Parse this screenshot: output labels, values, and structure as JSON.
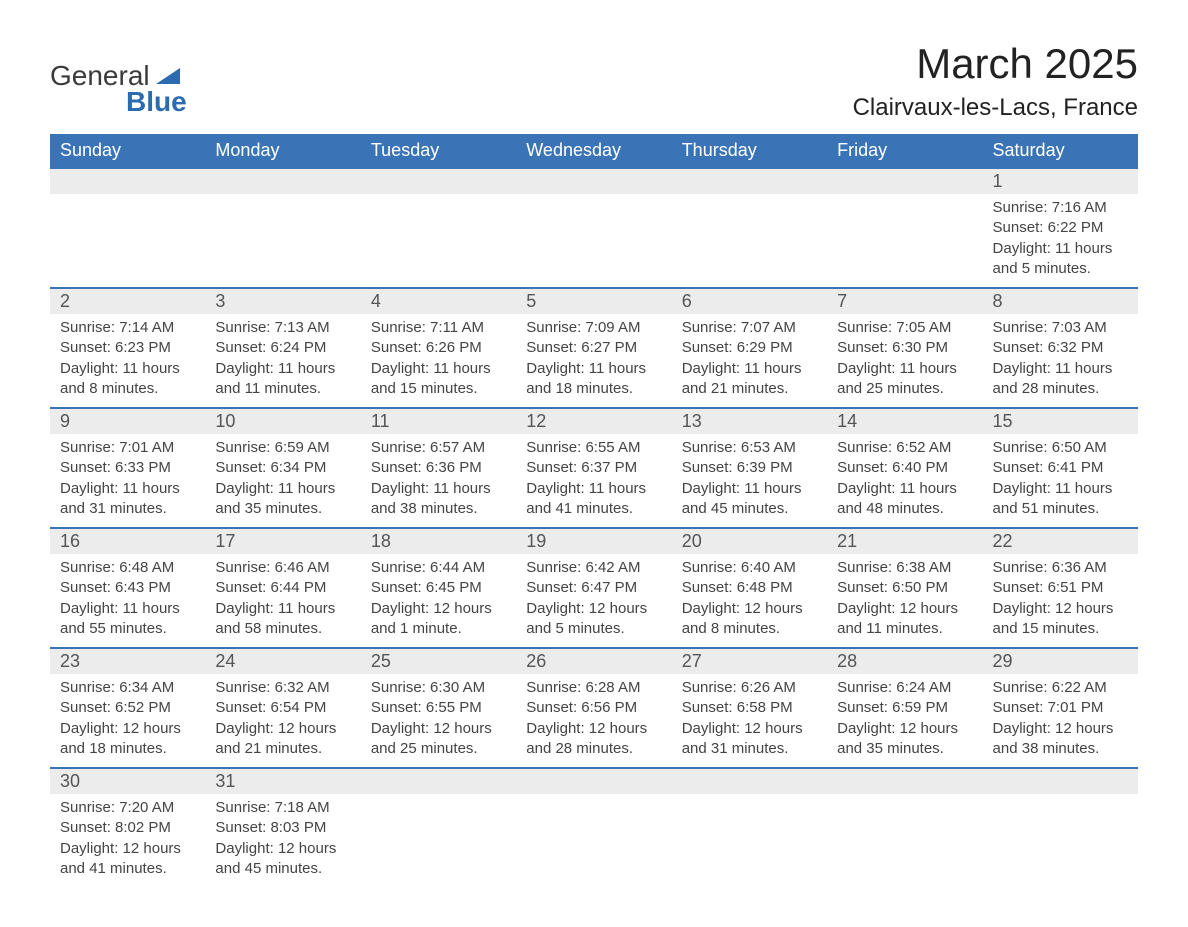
{
  "logo": {
    "main": "General",
    "sub": "Blue"
  },
  "title": {
    "month": "March 2025",
    "location": "Clairvaux-les-Lacs, France"
  },
  "colors": {
    "header_bg": "#3b74b6",
    "header_fg": "#ffffff",
    "row_border": "#3b74b6",
    "daynum_bg": "#ececec",
    "text": "#444444",
    "logo_blue": "#2b6cb0"
  },
  "table": {
    "columns": [
      "Sunday",
      "Monday",
      "Tuesday",
      "Wednesday",
      "Thursday",
      "Friday",
      "Saturday"
    ],
    "weeks": [
      [
        {
          "day": "",
          "sunrise": "",
          "sunset": "",
          "daylight": ""
        },
        {
          "day": "",
          "sunrise": "",
          "sunset": "",
          "daylight": ""
        },
        {
          "day": "",
          "sunrise": "",
          "sunset": "",
          "daylight": ""
        },
        {
          "day": "",
          "sunrise": "",
          "sunset": "",
          "daylight": ""
        },
        {
          "day": "",
          "sunrise": "",
          "sunset": "",
          "daylight": ""
        },
        {
          "day": "",
          "sunrise": "",
          "sunset": "",
          "daylight": ""
        },
        {
          "day": "1",
          "sunrise": "Sunrise: 7:16 AM",
          "sunset": "Sunset: 6:22 PM",
          "daylight": "Daylight: 11 hours and 5 minutes."
        }
      ],
      [
        {
          "day": "2",
          "sunrise": "Sunrise: 7:14 AM",
          "sunset": "Sunset: 6:23 PM",
          "daylight": "Daylight: 11 hours and 8 minutes."
        },
        {
          "day": "3",
          "sunrise": "Sunrise: 7:13 AM",
          "sunset": "Sunset: 6:24 PM",
          "daylight": "Daylight: 11 hours and 11 minutes."
        },
        {
          "day": "4",
          "sunrise": "Sunrise: 7:11 AM",
          "sunset": "Sunset: 6:26 PM",
          "daylight": "Daylight: 11 hours and 15 minutes."
        },
        {
          "day": "5",
          "sunrise": "Sunrise: 7:09 AM",
          "sunset": "Sunset: 6:27 PM",
          "daylight": "Daylight: 11 hours and 18 minutes."
        },
        {
          "day": "6",
          "sunrise": "Sunrise: 7:07 AM",
          "sunset": "Sunset: 6:29 PM",
          "daylight": "Daylight: 11 hours and 21 minutes."
        },
        {
          "day": "7",
          "sunrise": "Sunrise: 7:05 AM",
          "sunset": "Sunset: 6:30 PM",
          "daylight": "Daylight: 11 hours and 25 minutes."
        },
        {
          "day": "8",
          "sunrise": "Sunrise: 7:03 AM",
          "sunset": "Sunset: 6:32 PM",
          "daylight": "Daylight: 11 hours and 28 minutes."
        }
      ],
      [
        {
          "day": "9",
          "sunrise": "Sunrise: 7:01 AM",
          "sunset": "Sunset: 6:33 PM",
          "daylight": "Daylight: 11 hours and 31 minutes."
        },
        {
          "day": "10",
          "sunrise": "Sunrise: 6:59 AM",
          "sunset": "Sunset: 6:34 PM",
          "daylight": "Daylight: 11 hours and 35 minutes."
        },
        {
          "day": "11",
          "sunrise": "Sunrise: 6:57 AM",
          "sunset": "Sunset: 6:36 PM",
          "daylight": "Daylight: 11 hours and 38 minutes."
        },
        {
          "day": "12",
          "sunrise": "Sunrise: 6:55 AM",
          "sunset": "Sunset: 6:37 PM",
          "daylight": "Daylight: 11 hours and 41 minutes."
        },
        {
          "day": "13",
          "sunrise": "Sunrise: 6:53 AM",
          "sunset": "Sunset: 6:39 PM",
          "daylight": "Daylight: 11 hours and 45 minutes."
        },
        {
          "day": "14",
          "sunrise": "Sunrise: 6:52 AM",
          "sunset": "Sunset: 6:40 PM",
          "daylight": "Daylight: 11 hours and 48 minutes."
        },
        {
          "day": "15",
          "sunrise": "Sunrise: 6:50 AM",
          "sunset": "Sunset: 6:41 PM",
          "daylight": "Daylight: 11 hours and 51 minutes."
        }
      ],
      [
        {
          "day": "16",
          "sunrise": "Sunrise: 6:48 AM",
          "sunset": "Sunset: 6:43 PM",
          "daylight": "Daylight: 11 hours and 55 minutes."
        },
        {
          "day": "17",
          "sunrise": "Sunrise: 6:46 AM",
          "sunset": "Sunset: 6:44 PM",
          "daylight": "Daylight: 11 hours and 58 minutes."
        },
        {
          "day": "18",
          "sunrise": "Sunrise: 6:44 AM",
          "sunset": "Sunset: 6:45 PM",
          "daylight": "Daylight: 12 hours and 1 minute."
        },
        {
          "day": "19",
          "sunrise": "Sunrise: 6:42 AM",
          "sunset": "Sunset: 6:47 PM",
          "daylight": "Daylight: 12 hours and 5 minutes."
        },
        {
          "day": "20",
          "sunrise": "Sunrise: 6:40 AM",
          "sunset": "Sunset: 6:48 PM",
          "daylight": "Daylight: 12 hours and 8 minutes."
        },
        {
          "day": "21",
          "sunrise": "Sunrise: 6:38 AM",
          "sunset": "Sunset: 6:50 PM",
          "daylight": "Daylight: 12 hours and 11 minutes."
        },
        {
          "day": "22",
          "sunrise": "Sunrise: 6:36 AM",
          "sunset": "Sunset: 6:51 PM",
          "daylight": "Daylight: 12 hours and 15 minutes."
        }
      ],
      [
        {
          "day": "23",
          "sunrise": "Sunrise: 6:34 AM",
          "sunset": "Sunset: 6:52 PM",
          "daylight": "Daylight: 12 hours and 18 minutes."
        },
        {
          "day": "24",
          "sunrise": "Sunrise: 6:32 AM",
          "sunset": "Sunset: 6:54 PM",
          "daylight": "Daylight: 12 hours and 21 minutes."
        },
        {
          "day": "25",
          "sunrise": "Sunrise: 6:30 AM",
          "sunset": "Sunset: 6:55 PM",
          "daylight": "Daylight: 12 hours and 25 minutes."
        },
        {
          "day": "26",
          "sunrise": "Sunrise: 6:28 AM",
          "sunset": "Sunset: 6:56 PM",
          "daylight": "Daylight: 12 hours and 28 minutes."
        },
        {
          "day": "27",
          "sunrise": "Sunrise: 6:26 AM",
          "sunset": "Sunset: 6:58 PM",
          "daylight": "Daylight: 12 hours and 31 minutes."
        },
        {
          "day": "28",
          "sunrise": "Sunrise: 6:24 AM",
          "sunset": "Sunset: 6:59 PM",
          "daylight": "Daylight: 12 hours and 35 minutes."
        },
        {
          "day": "29",
          "sunrise": "Sunrise: 6:22 AM",
          "sunset": "Sunset: 7:01 PM",
          "daylight": "Daylight: 12 hours and 38 minutes."
        }
      ],
      [
        {
          "day": "30",
          "sunrise": "Sunrise: 7:20 AM",
          "sunset": "Sunset: 8:02 PM",
          "daylight": "Daylight: 12 hours and 41 minutes."
        },
        {
          "day": "31",
          "sunrise": "Sunrise: 7:18 AM",
          "sunset": "Sunset: 8:03 PM",
          "daylight": "Daylight: 12 hours and 45 minutes."
        },
        {
          "day": "",
          "sunrise": "",
          "sunset": "",
          "daylight": ""
        },
        {
          "day": "",
          "sunrise": "",
          "sunset": "",
          "daylight": ""
        },
        {
          "day": "",
          "sunrise": "",
          "sunset": "",
          "daylight": ""
        },
        {
          "day": "",
          "sunrise": "",
          "sunset": "",
          "daylight": ""
        },
        {
          "day": "",
          "sunrise": "",
          "sunset": "",
          "daylight": ""
        }
      ]
    ]
  }
}
